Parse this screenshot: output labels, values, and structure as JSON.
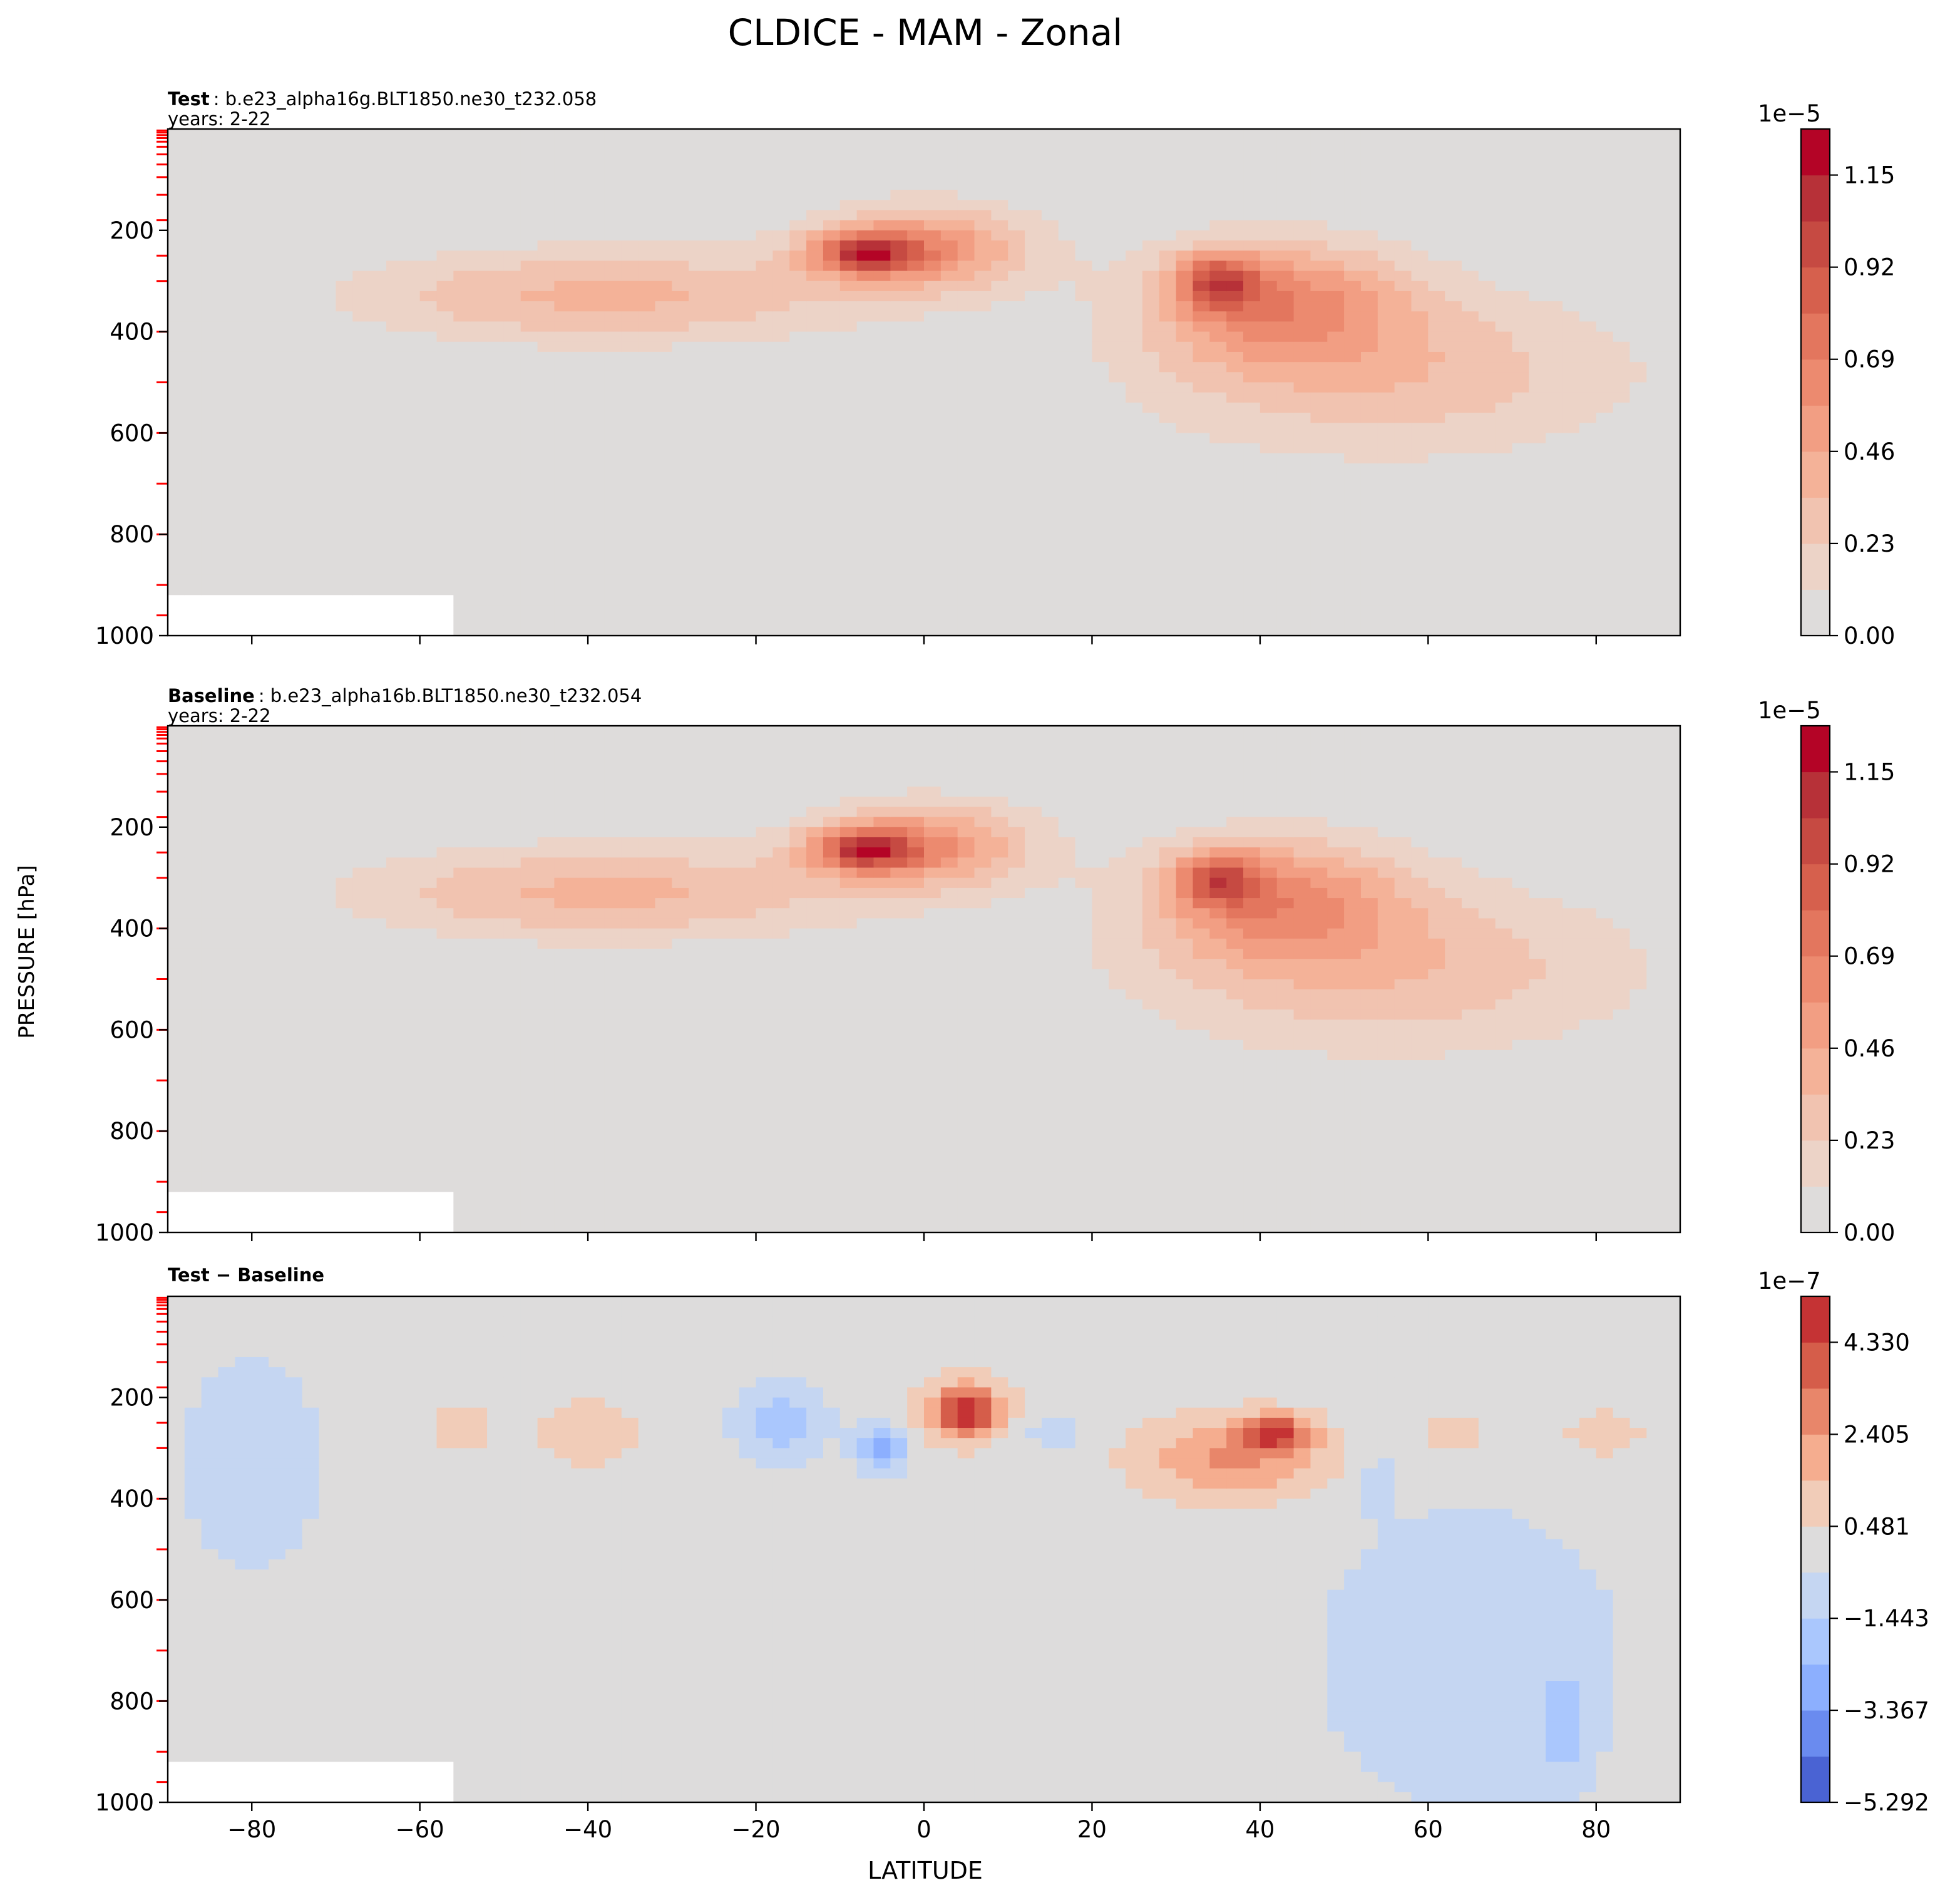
{
  "figure": {
    "title": "CLDICE - MAM - Zonal",
    "ylabel": "PRESSURE [hPa]",
    "xlabel": "LATITUDE"
  },
  "chart_data": [
    {
      "type": "heatmap",
      "label_bold": "Test",
      "label_rest": ": b.e23_alpha16g.BLT1850.ne30_t232.058",
      "years": "years: 2-22",
      "xlim": [
        -90,
        90
      ],
      "ylim": [
        1000,
        0
      ],
      "x_ticks": [
        -80,
        -60,
        -40,
        -20,
        0,
        20,
        40,
        60,
        80
      ],
      "y_ticks": [
        200,
        400,
        600,
        800,
        1000
      ],
      "colorbar": {
        "exponent": "1e−5",
        "min": 0.0,
        "max": 1.265,
        "levels": [
          0.0,
          0.115,
          0.23,
          0.345,
          0.46,
          0.575,
          0.69,
          0.805,
          0.92,
          1.035,
          1.15,
          1.265
        ],
        "colors": [
          "#dedcdb",
          "#ecd3c7",
          "#f1c3b0",
          "#f4b298",
          "#f29e83",
          "#ec8a6f",
          "#e3765e",
          "#d6604d",
          "#c64a42",
          "#b73138",
          "#b40426"
        ],
        "tick_values": [
          0.0,
          0.23,
          0.46,
          0.69,
          0.92,
          1.15
        ],
        "tick_labels": [
          "0.00",
          "0.23",
          "0.46",
          "0.69",
          "0.92",
          "1.15"
        ]
      },
      "features": [
        {
          "lat": -7,
          "p": 245,
          "slat": 6,
          "sp": 40,
          "amp": 0.72
        },
        {
          "lat": 0,
          "p": 235,
          "slat": 13,
          "sp": 85,
          "amp": 0.56
        },
        {
          "lat": -38,
          "p": 330,
          "slat": 30,
          "sp": 95,
          "amp": 0.38
        },
        {
          "lat": 35,
          "p": 300,
          "slat": 5,
          "sp": 55,
          "amp": 0.6
        },
        {
          "lat": 42,
          "p": 340,
          "slat": 15,
          "sp": 120,
          "amp": 0.55
        },
        {
          "lat": 55,
          "p": 480,
          "slat": 30,
          "sp": 170,
          "amp": 0.32
        }
      ],
      "missing_below_p": 920,
      "missing_lat_max": -55
    },
    {
      "type": "heatmap",
      "label_bold": "Baseline",
      "label_rest": ": b.e23_alpha16b.BLT1850.ne30_t232.054",
      "years": "years: 2-22",
      "xlim": [
        -90,
        90
      ],
      "ylim": [
        1000,
        0
      ],
      "x_ticks": [
        -80,
        -60,
        -40,
        -20,
        0,
        20,
        40,
        60,
        80
      ],
      "y_ticks": [
        200,
        400,
        600,
        800,
        1000
      ],
      "colorbar": {
        "exponent": "1e−5",
        "min": 0.0,
        "max": 1.265,
        "levels": [
          0.0,
          0.115,
          0.23,
          0.345,
          0.46,
          0.575,
          0.69,
          0.805,
          0.92,
          1.035,
          1.15,
          1.265
        ],
        "colors": [
          "#dedcdb",
          "#ecd3c7",
          "#f1c3b0",
          "#f4b298",
          "#f29e83",
          "#ec8a6f",
          "#e3765e",
          "#d6604d",
          "#c64a42",
          "#b73138",
          "#b40426"
        ],
        "tick_values": [
          0.0,
          0.23,
          0.46,
          0.69,
          0.92,
          1.15
        ],
        "tick_labels": [
          "0.00",
          "0.23",
          "0.46",
          "0.69",
          "0.92",
          "1.15"
        ]
      },
      "features": [
        {
          "lat": -7,
          "p": 245,
          "slat": 6,
          "sp": 40,
          "amp": 0.72
        },
        {
          "lat": 0,
          "p": 235,
          "slat": 13,
          "sp": 85,
          "amp": 0.55
        },
        {
          "lat": -38,
          "p": 330,
          "slat": 30,
          "sp": 95,
          "amp": 0.38
        },
        {
          "lat": 35,
          "p": 300,
          "slat": 5,
          "sp": 55,
          "amp": 0.58
        },
        {
          "lat": 42,
          "p": 340,
          "slat": 15,
          "sp": 120,
          "amp": 0.53
        },
        {
          "lat": 55,
          "p": 480,
          "slat": 30,
          "sp": 170,
          "amp": 0.33
        }
      ],
      "missing_below_p": 920,
      "missing_lat_max": -55
    },
    {
      "type": "heatmap",
      "label_bold": "Test − Baseline",
      "label_rest": "",
      "years": "",
      "xlim": [
        -90,
        90
      ],
      "ylim": [
        1000,
        0
      ],
      "x_ticks": [
        -80,
        -60,
        -40,
        -20,
        0,
        20,
        40,
        60,
        80
      ],
      "y_ticks": [
        200,
        400,
        600,
        800,
        1000
      ],
      "colorbar": {
        "exponent": "1e−7",
        "min": -5.292,
        "max": 5.292,
        "levels": [
          -5.292,
          -4.33,
          -3.367,
          -2.405,
          -1.443,
          -0.481,
          0.481,
          1.443,
          2.405,
          3.367,
          4.33,
          5.292
        ],
        "colors": [
          "#4a63d3",
          "#6a8bef",
          "#8caffe",
          "#aac7fd",
          "#c5d6f2",
          "#dddcdc",
          "#f1ccb8",
          "#f5ad8f",
          "#e8866a",
          "#d55d4a",
          "#c53334"
        ],
        "tick_values": [
          -5.292,
          -3.367,
          -1.443,
          0.481,
          2.405,
          4.33
        ],
        "tick_labels": [
          "−5.292",
          "−3.367",
          "−1.443",
          "0.481",
          "2.405",
          "4.330"
        ]
      },
      "features": [
        {
          "lat": 5,
          "p": 230,
          "slat": 3,
          "sp": 45,
          "amp": 4.2
        },
        {
          "lat": 5,
          "p": 220,
          "slat": 7,
          "sp": 70,
          "amp": 1.6
        },
        {
          "lat": 42,
          "p": 270,
          "slat": 4,
          "sp": 35,
          "amp": 3.8
        },
        {
          "lat": 37,
          "p": 320,
          "slat": 11,
          "sp": 80,
          "amp": 2.6
        },
        {
          "lat": -17,
          "p": 250,
          "slat": 5,
          "sp": 70,
          "amp": -2.3
        },
        {
          "lat": -5,
          "p": 300,
          "slat": 3,
          "sp": 45,
          "amp": -3.3
        },
        {
          "lat": -40,
          "p": 270,
          "slat": 6,
          "sp": 60,
          "amp": 1.4
        },
        {
          "lat": -55,
          "p": 260,
          "slat": 4,
          "sp": 45,
          "amp": 1.2
        },
        {
          "lat": 63,
          "p": 270,
          "slat": 4,
          "sp": 45,
          "amp": 1.1
        },
        {
          "lat": 81,
          "p": 270,
          "slat": 5,
          "sp": 50,
          "amp": 1.1
        },
        {
          "lat": -80,
          "p": 330,
          "slat": 8,
          "sp": 210,
          "amp": -1.3
        },
        {
          "lat": 65,
          "p": 720,
          "slat": 18,
          "sp": 300,
          "amp": -1.3
        },
        {
          "lat": 76,
          "p": 860,
          "slat": 3,
          "sp": 110,
          "amp": -1.4
        },
        {
          "lat": 54,
          "p": 370,
          "slat": 2,
          "sp": 55,
          "amp": -1.2
        },
        {
          "lat": 15,
          "p": 270,
          "slat": 4,
          "sp": 45,
          "amp": -1.0
        }
      ],
      "missing_below_p": 920,
      "missing_lat_max": -55
    }
  ]
}
